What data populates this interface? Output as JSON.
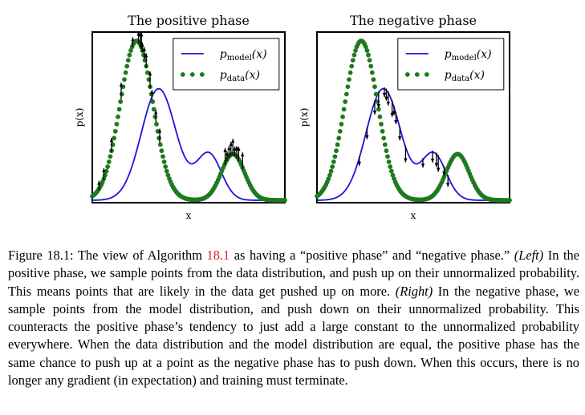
{
  "figure": {
    "panels": [
      {
        "title": "The positive phase",
        "ylabel": "p(x)",
        "xlabel": "x",
        "legend": [
          {
            "label_main": "p",
            "label_sub": "model",
            "label_arg": "(x)",
            "style": "line",
            "color": "#1c13e0"
          },
          {
            "label_main": "p",
            "label_sub": "data",
            "label_arg": "(x)",
            "style": "dots",
            "color": "#1e7a1e"
          }
        ],
        "arrow_direction": "up"
      },
      {
        "title": "The negative phase",
        "ylabel": "p(x)",
        "xlabel": "x",
        "legend": [
          {
            "label_main": "p",
            "label_sub": "model",
            "label_arg": "(x)",
            "style": "line",
            "color": "#1c13e0"
          },
          {
            "label_main": "p",
            "label_sub": "data",
            "label_arg": "(x)",
            "style": "dots",
            "color": "#1e7a1e"
          }
        ],
        "arrow_direction": "down"
      }
    ]
  },
  "caption": {
    "prefix": "Figure 18.1: The view of Algorithm ",
    "ref": "18.1",
    "text1": " as having a “positive phase” and “negative phase.” ",
    "left_tag": "(Left)",
    "text2": " In the positive phase, we sample points from the data distribution, and push up on their unnormalized probability. This means points that are likely in the data get pushed up on more. ",
    "right_tag": "(Right)",
    "text3": " In the negative phase, we sample points from the model distribution, and push down on their unnormalized probability. This counteracts the positive phase’s tendency to just add a large constant to the unnormalized probability everywhere. When the data distribution and the model distribution are equal, the positive phase has the same chance to push up at a point as the negative phase has to push down. When this occurs, there is no longer any gradient (in expectation) and training must terminate."
  }
}
